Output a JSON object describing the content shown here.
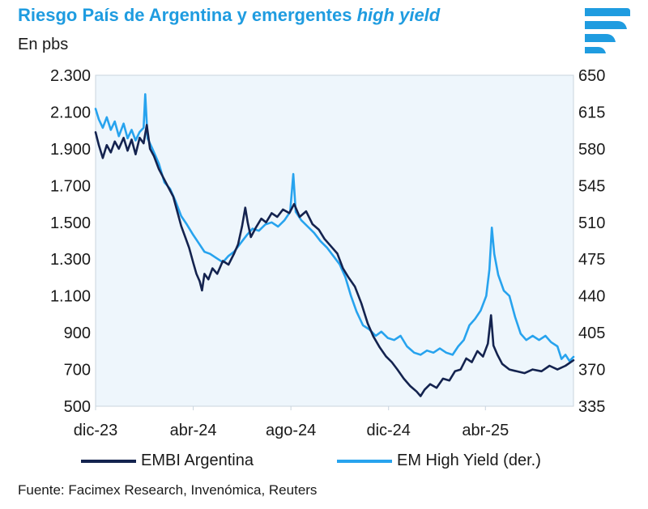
{
  "header": {
    "title_main": "Riesgo País de Argentina y emergentes ",
    "title_italic": "high yield",
    "subtitle": "En pbs"
  },
  "footer": {
    "source": "Fuente: Facimex Research, Invenómica, Reuters"
  },
  "colors": {
    "embi": "#14234f",
    "emhy": "#27a3ee",
    "title": "#1f9ce0",
    "plot_bg": "#eef6fc",
    "logo": "#1f9ce0"
  },
  "chart_data": {
    "type": "line",
    "x_range": [
      "2023-12-01",
      "2025-07-20"
    ],
    "x_ticks": [
      {
        "date": "2023-12-01",
        "label": "dic-23"
      },
      {
        "date": "2024-04-01",
        "label": "abr-24"
      },
      {
        "date": "2024-08-01",
        "label": "ago-24"
      },
      {
        "date": "2024-12-01",
        "label": "dic-24"
      },
      {
        "date": "2025-04-01",
        "label": "abr-25"
      }
    ],
    "y_left": {
      "min": 500,
      "max": 2300,
      "ticks": [
        500,
        700,
        900,
        1100,
        1300,
        1500,
        1700,
        1900,
        2100,
        2300
      ],
      "tick_labels": [
        "500",
        "700",
        "900",
        "1.100",
        "1.300",
        "1.500",
        "1.700",
        "1.900",
        "2.100",
        "2.300"
      ]
    },
    "y_right": {
      "min": 335,
      "max": 650,
      "ticks": [
        335,
        370,
        405,
        440,
        475,
        510,
        545,
        580,
        615,
        650
      ],
      "tick_labels": [
        "335",
        "370",
        "405",
        "440",
        "475",
        "510",
        "545",
        "580",
        "615",
        "650"
      ]
    },
    "legend": {
      "placement": "bottom"
    },
    "grid": false,
    "series": [
      {
        "name": "EMBI Argentina",
        "axis": "left",
        "color": "#14234f",
        "points": [
          [
            "2023-12-01",
            1990
          ],
          [
            "2023-12-05",
            1920
          ],
          [
            "2023-12-10",
            1850
          ],
          [
            "2023-12-15",
            1920
          ],
          [
            "2023-12-20",
            1880
          ],
          [
            "2023-12-25",
            1940
          ],
          [
            "2023-12-30",
            1900
          ],
          [
            "2024-01-05",
            1960
          ],
          [
            "2024-01-10",
            1890
          ],
          [
            "2024-01-15",
            1950
          ],
          [
            "2024-01-20",
            1870
          ],
          [
            "2024-01-25",
            1960
          ],
          [
            "2024-01-30",
            1930
          ],
          [
            "2024-02-03",
            2030
          ],
          [
            "2024-02-07",
            1900
          ],
          [
            "2024-02-12",
            1860
          ],
          [
            "2024-02-18",
            1790
          ],
          [
            "2024-02-24",
            1740
          ],
          [
            "2024-03-01",
            1690
          ],
          [
            "2024-03-07",
            1640
          ],
          [
            "2024-03-12",
            1560
          ],
          [
            "2024-03-17",
            1480
          ],
          [
            "2024-03-22",
            1420
          ],
          [
            "2024-03-27",
            1360
          ],
          [
            "2024-04-01",
            1280
          ],
          [
            "2024-04-05",
            1220
          ],
          [
            "2024-04-09",
            1180
          ],
          [
            "2024-04-12",
            1130
          ],
          [
            "2024-04-15",
            1220
          ],
          [
            "2024-04-20",
            1190
          ],
          [
            "2024-04-25",
            1250
          ],
          [
            "2024-05-01",
            1220
          ],
          [
            "2024-05-08",
            1290
          ],
          [
            "2024-05-15",
            1270
          ],
          [
            "2024-05-22",
            1330
          ],
          [
            "2024-05-27",
            1380
          ],
          [
            "2024-06-01",
            1480
          ],
          [
            "2024-06-05",
            1580
          ],
          [
            "2024-06-08",
            1500
          ],
          [
            "2024-06-12",
            1420
          ],
          [
            "2024-06-18",
            1470
          ],
          [
            "2024-06-25",
            1520
          ],
          [
            "2024-07-01",
            1500
          ],
          [
            "2024-07-08",
            1550
          ],
          [
            "2024-07-15",
            1530
          ],
          [
            "2024-07-22",
            1570
          ],
          [
            "2024-07-30",
            1550
          ],
          [
            "2024-08-05",
            1600
          ],
          [
            "2024-08-12",
            1530
          ],
          [
            "2024-08-20",
            1560
          ],
          [
            "2024-08-28",
            1490
          ],
          [
            "2024-09-05",
            1460
          ],
          [
            "2024-09-12",
            1410
          ],
          [
            "2024-09-20",
            1370
          ],
          [
            "2024-09-28",
            1330
          ],
          [
            "2024-10-05",
            1250
          ],
          [
            "2024-10-12",
            1200
          ],
          [
            "2024-10-20",
            1150
          ],
          [
            "2024-10-28",
            1060
          ],
          [
            "2024-11-05",
            950
          ],
          [
            "2024-11-12",
            880
          ],
          [
            "2024-11-20",
            820
          ],
          [
            "2024-11-28",
            770
          ],
          [
            "2024-12-05",
            740
          ],
          [
            "2024-12-12",
            700
          ],
          [
            "2024-12-20",
            650
          ],
          [
            "2024-12-28",
            610
          ],
          [
            "2025-01-05",
            580
          ],
          [
            "2025-01-10",
            555
          ],
          [
            "2025-01-15",
            590
          ],
          [
            "2025-01-22",
            620
          ],
          [
            "2025-01-30",
            600
          ],
          [
            "2025-02-07",
            650
          ],
          [
            "2025-02-15",
            640
          ],
          [
            "2025-02-22",
            690
          ],
          [
            "2025-03-01",
            700
          ],
          [
            "2025-03-08",
            760
          ],
          [
            "2025-03-15",
            740
          ],
          [
            "2025-03-22",
            800
          ],
          [
            "2025-03-29",
            770
          ],
          [
            "2025-04-04",
            840
          ],
          [
            "2025-04-08",
            995
          ],
          [
            "2025-04-11",
            830
          ],
          [
            "2025-04-16",
            780
          ],
          [
            "2025-04-22",
            730
          ],
          [
            "2025-05-01",
            700
          ],
          [
            "2025-05-10",
            690
          ],
          [
            "2025-05-20",
            680
          ],
          [
            "2025-05-30",
            700
          ],
          [
            "2025-06-10",
            690
          ],
          [
            "2025-06-20",
            720
          ],
          [
            "2025-06-30",
            700
          ],
          [
            "2025-07-10",
            720
          ],
          [
            "2025-07-20",
            750
          ]
        ]
      },
      {
        "name": "EM High Yield (der.)",
        "axis": "right",
        "color": "#27a3ee",
        "points": [
          [
            "2023-12-01",
            618
          ],
          [
            "2023-12-05",
            608
          ],
          [
            "2023-12-10",
            600
          ],
          [
            "2023-12-15",
            610
          ],
          [
            "2023-12-20",
            598
          ],
          [
            "2023-12-25",
            606
          ],
          [
            "2023-12-30",
            592
          ],
          [
            "2024-01-05",
            604
          ],
          [
            "2024-01-10",
            590
          ],
          [
            "2024-01-15",
            598
          ],
          [
            "2024-01-20",
            588
          ],
          [
            "2024-01-25",
            596
          ],
          [
            "2024-01-30",
            600
          ],
          [
            "2024-02-01",
            632
          ],
          [
            "2024-02-04",
            590
          ],
          [
            "2024-02-10",
            580
          ],
          [
            "2024-02-18",
            566
          ],
          [
            "2024-02-25",
            548
          ],
          [
            "2024-03-03",
            542
          ],
          [
            "2024-03-10",
            530
          ],
          [
            "2024-03-17",
            516
          ],
          [
            "2024-03-24",
            508
          ],
          [
            "2024-04-01",
            498
          ],
          [
            "2024-04-08",
            490
          ],
          [
            "2024-04-15",
            482
          ],
          [
            "2024-04-22",
            480
          ],
          [
            "2024-04-30",
            476
          ],
          [
            "2024-05-08",
            472
          ],
          [
            "2024-05-15",
            478
          ],
          [
            "2024-05-22",
            482
          ],
          [
            "2024-05-30",
            490
          ],
          [
            "2024-06-07",
            498
          ],
          [
            "2024-06-14",
            504
          ],
          [
            "2024-06-22",
            502
          ],
          [
            "2024-06-30",
            508
          ],
          [
            "2024-07-08",
            510
          ],
          [
            "2024-07-16",
            506
          ],
          [
            "2024-07-24",
            512
          ],
          [
            "2024-07-31",
            520
          ],
          [
            "2024-08-04",
            556
          ],
          [
            "2024-08-07",
            520
          ],
          [
            "2024-08-14",
            512
          ],
          [
            "2024-08-22",
            506
          ],
          [
            "2024-08-30",
            500
          ],
          [
            "2024-09-07",
            492
          ],
          [
            "2024-09-15",
            486
          ],
          [
            "2024-09-23",
            478
          ],
          [
            "2024-10-01",
            470
          ],
          [
            "2024-10-08",
            458
          ],
          [
            "2024-10-15",
            440
          ],
          [
            "2024-10-22",
            425
          ],
          [
            "2024-10-30",
            412
          ],
          [
            "2024-11-07",
            408
          ],
          [
            "2024-11-15",
            402
          ],
          [
            "2024-11-22",
            406
          ],
          [
            "2024-11-30",
            400
          ],
          [
            "2024-12-08",
            398
          ],
          [
            "2024-12-16",
            402
          ],
          [
            "2024-12-24",
            392
          ],
          [
            "2025-01-02",
            386
          ],
          [
            "2025-01-10",
            384
          ],
          [
            "2025-01-18",
            388
          ],
          [
            "2025-01-26",
            386
          ],
          [
            "2025-02-03",
            390
          ],
          [
            "2025-02-11",
            386
          ],
          [
            "2025-02-19",
            384
          ],
          [
            "2025-02-26",
            392
          ],
          [
            "2025-03-05",
            398
          ],
          [
            "2025-03-12",
            412
          ],
          [
            "2025-03-19",
            418
          ],
          [
            "2025-03-26",
            426
          ],
          [
            "2025-04-02",
            440
          ],
          [
            "2025-04-06",
            465
          ],
          [
            "2025-04-09",
            505
          ],
          [
            "2025-04-12",
            480
          ],
          [
            "2025-04-17",
            460
          ],
          [
            "2025-04-24",
            445
          ],
          [
            "2025-05-01",
            440
          ],
          [
            "2025-05-08",
            420
          ],
          [
            "2025-05-15",
            404
          ],
          [
            "2025-05-22",
            398
          ],
          [
            "2025-05-30",
            402
          ],
          [
            "2025-06-07",
            398
          ],
          [
            "2025-06-15",
            402
          ],
          [
            "2025-06-22",
            396
          ],
          [
            "2025-06-30",
            392
          ],
          [
            "2025-07-05",
            380
          ],
          [
            "2025-07-10",
            384
          ],
          [
            "2025-07-15",
            378
          ],
          [
            "2025-07-20",
            382
          ]
        ]
      }
    ]
  }
}
